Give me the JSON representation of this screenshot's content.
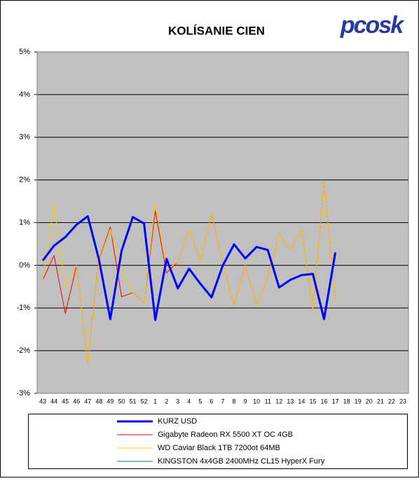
{
  "chart_data": {
    "type": "line",
    "title": "KOLÍSANIE CIEN",
    "logo": "pcosk",
    "categories": [
      "43",
      "44",
      "45",
      "46",
      "47",
      "48",
      "49",
      "50",
      "51",
      "52",
      "1",
      "2",
      "3",
      "4",
      "5",
      "6",
      "7",
      "8",
      "9",
      "10",
      "11",
      "12",
      "13",
      "14",
      "15",
      "16",
      "17",
      "18",
      "19",
      "20",
      "21",
      "22",
      "23"
    ],
    "series": [
      {
        "name": "KURZ USD",
        "color": "#0000ff",
        "values": [
          0.11,
          0.46,
          0.66,
          0.95,
          1.15,
          0.13,
          -1.26,
          0.34,
          1.13,
          0.98,
          -1.28,
          0.15,
          -0.54,
          -0.08,
          -0.43,
          -0.75,
          0,
          0.49,
          0.16,
          0.43,
          0.36,
          -0.52,
          -0.34,
          -0.23,
          -0.2,
          -1.26,
          0.3,
          null,
          null,
          null,
          null,
          null,
          null
        ]
      },
      {
        "name": "Gigabyte Radeon RX 5500 XT OC 4GB",
        "color": "#ff0000",
        "values": [
          -0.34,
          0.23,
          -1.13,
          0,
          -2.29,
          0.13,
          0.9,
          -0.74,
          -0.64,
          -0.9,
          1.28,
          -0.18,
          0.08,
          0.82,
          0.1,
          1.2,
          0.05,
          -0.93,
          0,
          -0.93,
          -0.3,
          0.74,
          0.36,
          0.83,
          -1.03,
          1.97,
          -0.85,
          null,
          null,
          null,
          null,
          null,
          null
        ]
      },
      {
        "name": "WD Caviar Black 1TB 7200ot 64MB",
        "color": "#ffcc00",
        "values": [
          -0.34,
          1.42,
          -0.5,
          0,
          -2.29,
          0.1,
          0.85,
          -0.1,
          -0.65,
          -0.9,
          1.45,
          -0.1,
          0.08,
          0.82,
          0.1,
          1.2,
          0.05,
          -0.93,
          0,
          -0.93,
          -0.3,
          0.74,
          0.36,
          0.83,
          -1.03,
          1.97,
          -0.85,
          null,
          null,
          null,
          null,
          null,
          null
        ]
      },
      {
        "name": "KINGSTON 4x4GB 2400MHz CL15 HyperX Fury",
        "color": "#008080",
        "values": [
          null,
          null,
          null,
          null,
          null,
          null,
          null,
          null,
          null,
          null,
          null,
          null,
          null,
          null,
          null,
          null,
          null,
          null,
          null,
          null,
          null,
          null,
          null,
          null,
          null,
          null,
          null,
          null,
          null,
          null,
          null,
          null,
          null
        ]
      }
    ],
    "ylim": [
      -3,
      5
    ],
    "yticks": [
      {
        "value": -3,
        "label": "-3%"
      },
      {
        "value": -2,
        "label": "-2%"
      },
      {
        "value": -1,
        "label": "-1%"
      },
      {
        "value": 0,
        "label": "0%"
      },
      {
        "value": 1,
        "label": "1%"
      },
      {
        "value": 2,
        "label": "2%"
      },
      {
        "value": 3,
        "label": "3%"
      },
      {
        "value": 4,
        "label": "4%"
      },
      {
        "value": 5,
        "label": "5%"
      }
    ],
    "grid": true
  }
}
